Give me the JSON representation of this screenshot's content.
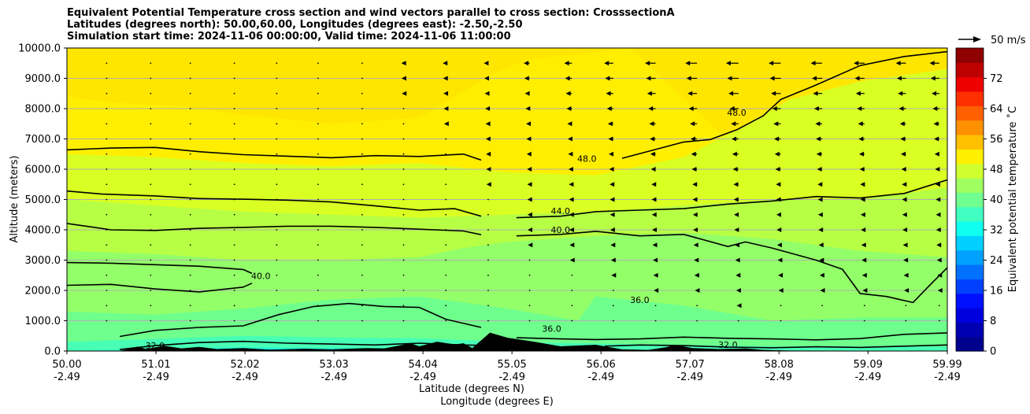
{
  "chart_data": {
    "type": "heatmap",
    "title_lines": [
      "Equivalent Potential Temperature cross section and wind vectors parallel to cross section: CrosssectionA",
      "Latitudes (degrees north): 50.00,60.00, Longitudes (degrees east): -2.50,-2.50",
      "Simulation start time: 2024-11-06 00:00:00, Valid time: 2024-11-06 11:00:00"
    ],
    "xlabel_lines": [
      "Latitude (degrees N)",
      "Longitude (degrees E)"
    ],
    "ylabel": "Altitude (meters)",
    "x_tick_lat": [
      "50.00",
      "51.01",
      "52.02",
      "53.03",
      "54.04",
      "55.05",
      "56.06",
      "57.07",
      "58.08",
      "59.09",
      "59.99"
    ],
    "x_tick_lon": [
      "-2.49",
      "-2.49",
      "-2.49",
      "-2.49",
      "-2.49",
      "-2.49",
      "-2.49",
      "-2.49",
      "-2.49",
      "-2.49",
      "-2.49"
    ],
    "x_tick_values": [
      50.0,
      51.01,
      52.02,
      53.03,
      54.04,
      55.05,
      56.06,
      57.07,
      58.08,
      59.09,
      59.99
    ],
    "xlim": [
      50.0,
      59.99
    ],
    "y_ticks": [
      "0.0",
      "1000.0",
      "2000.0",
      "3000.0",
      "4000.0",
      "5000.0",
      "6000.0",
      "7000.0",
      "8000.0",
      "9000.0",
      "10000.0"
    ],
    "ylim": [
      0,
      10000
    ],
    "grid": "horizontal",
    "colorbar": {
      "label": "Equivalent potential temperature ˚C",
      "ticks": [
        "0",
        "8",
        "16",
        "24",
        "32",
        "40",
        "48",
        "56",
        "64",
        "72"
      ],
      "range": [
        0,
        80
      ],
      "colors": [
        "#00008f",
        "#0000b3",
        "#0000df",
        "#0010ff",
        "#0040ff",
        "#0070ff",
        "#00a0ff",
        "#00d0ff",
        "#10fff0",
        "#40ffc0",
        "#70ff90",
        "#a0ff60",
        "#d0ff30",
        "#fff000",
        "#ffc000",
        "#ff9000",
        "#ff6000",
        "#ff3000",
        "#ef0000",
        "#bf0000",
        "#8f0000"
      ]
    },
    "wind_key_label": "50 m/s",
    "field_layers": [
      {
        "theta": 47,
        "color": "#ffee00",
        "boundary": [
          [
            50.0,
            8400
          ],
          [
            50.5,
            8200
          ],
          [
            51.2,
            8100
          ],
          [
            52.0,
            7800
          ],
          [
            53.0,
            7500
          ],
          [
            54.0,
            7700
          ],
          [
            54.8,
            9100
          ],
          [
            55.2,
            9600
          ],
          [
            56.4,
            10000
          ]
        ]
      },
      {
        "theta": 45,
        "color": "#d9ff23",
        "boundary": [
          [
            50.0,
            6500
          ],
          [
            51.0,
            6400
          ],
          [
            52.0,
            6200
          ],
          [
            53.0,
            6100
          ],
          [
            54.0,
            6200
          ],
          [
            55.0,
            5900
          ],
          [
            56.0,
            5800
          ],
          [
            57.0,
            6400
          ],
          [
            57.6,
            7300
          ],
          [
            58.2,
            8300
          ],
          [
            59.0,
            8900
          ],
          [
            59.99,
            9300
          ]
        ]
      },
      {
        "theta": 42,
        "color": "#b7ff45",
        "boundary": [
          [
            50.0,
            5000
          ],
          [
            51.0,
            4800
          ],
          [
            52.0,
            4600
          ],
          [
            53.0,
            4500
          ],
          [
            54.0,
            4400
          ],
          [
            55.0,
            4500
          ],
          [
            56.0,
            4600
          ],
          [
            57.0,
            4800
          ],
          [
            58.0,
            5000
          ],
          [
            59.0,
            5000
          ],
          [
            59.99,
            5400
          ]
        ]
      },
      {
        "theta": 39,
        "color": "#93ff69",
        "boundary": [
          [
            50.0,
            3300
          ],
          [
            51.0,
            3200
          ],
          [
            52.0,
            3000
          ],
          [
            53.0,
            3000
          ],
          [
            54.0,
            3100
          ],
          [
            54.5,
            3400
          ],
          [
            55.0,
            3600
          ],
          [
            56.0,
            3800
          ],
          [
            57.0,
            3900
          ],
          [
            58.0,
            3700
          ],
          [
            59.0,
            3300
          ],
          [
            59.99,
            3100
          ]
        ]
      },
      {
        "theta": 37,
        "color": "#6fff8d",
        "boundary": [
          [
            50.0,
            1300
          ],
          [
            51.0,
            1200
          ],
          [
            52.0,
            1400
          ],
          [
            53.0,
            1700
          ],
          [
            54.0,
            1800
          ],
          [
            55.0,
            1400
          ],
          [
            55.8,
            1000
          ],
          [
            56.0,
            1800
          ],
          [
            57.0,
            1500
          ],
          [
            58.0,
            1000
          ],
          [
            59.0,
            1100
          ],
          [
            59.99,
            1100
          ]
        ]
      },
      {
        "theta": 34,
        "color": "#47ffb5",
        "boundary": [
          [
            50.0,
            300
          ],
          [
            51.0,
            400
          ],
          [
            52.0,
            500
          ],
          [
            53.0,
            450
          ],
          [
            54.0,
            420
          ],
          [
            55.0,
            300
          ],
          [
            56.0,
            250
          ],
          [
            57.0,
            200
          ],
          [
            58.0,
            150
          ],
          [
            59.99,
            150
          ]
        ]
      },
      {
        "theta": 31,
        "color": "#1ff8dc",
        "boundary": [
          [
            50.0,
            0
          ],
          [
            51.0,
            60
          ],
          [
            52.0,
            120
          ],
          [
            53.0,
            90
          ],
          [
            54.0,
            110
          ],
          [
            55.0,
            70
          ],
          [
            56.0,
            20
          ],
          [
            57.0,
            0
          ],
          [
            59.99,
            0
          ]
        ]
      }
    ],
    "contours": [
      {
        "label": "48.0",
        "label_at": [
          55.9,
          6250
        ],
        "points": [
          [
            50.0,
            6640
          ],
          [
            50.5,
            6700
          ],
          [
            51.0,
            6720
          ],
          [
            51.5,
            6580
          ],
          [
            52.0,
            6480
          ],
          [
            52.5,
            6430
          ],
          [
            53.0,
            6380
          ],
          [
            53.5,
            6450
          ],
          [
            54.0,
            6420
          ],
          [
            54.5,
            6500
          ],
          [
            54.7,
            6300
          ]
        ]
      },
      {
        "label": "48.0",
        "label_at": [
          57.6,
          7770
        ],
        "points": [
          [
            56.3,
            6360
          ],
          [
            57.0,
            6900
          ],
          [
            57.3,
            6980
          ],
          [
            57.6,
            7300
          ],
          [
            57.9,
            7760
          ],
          [
            58.1,
            8300
          ],
          [
            58.5,
            8780
          ],
          [
            59.0,
            9420
          ],
          [
            59.5,
            9720
          ],
          [
            59.99,
            9880
          ]
        ]
      },
      {
        "label": "44.0",
        "label_at": [
          55.6,
          4520
        ],
        "points": [
          [
            50.0,
            5280
          ],
          [
            50.4,
            5180
          ],
          [
            51.0,
            5120
          ],
          [
            51.5,
            5030
          ],
          [
            52.0,
            5010
          ],
          [
            52.5,
            4980
          ],
          [
            53.0,
            4920
          ],
          [
            53.5,
            4790
          ],
          [
            54.0,
            4650
          ],
          [
            54.4,
            4700
          ],
          [
            54.7,
            4450
          ]
        ]
      },
      {
        "label": "",
        "label_at": null,
        "points": [
          [
            55.1,
            4400
          ],
          [
            55.6,
            4450
          ],
          [
            56.0,
            4600
          ],
          [
            56.5,
            4650
          ],
          [
            57.0,
            4700
          ],
          [
            57.5,
            4850
          ],
          [
            58.0,
            4950
          ],
          [
            58.5,
            5100
          ],
          [
            59.0,
            5050
          ],
          [
            59.5,
            5200
          ],
          [
            59.99,
            5650
          ]
        ]
      },
      {
        "label": "40.0",
        "label_at": [
          55.6,
          3900
        ],
        "points": [
          [
            50.0,
            4210
          ],
          [
            50.5,
            4000
          ],
          [
            51.0,
            3980
          ],
          [
            51.5,
            4050
          ],
          [
            52.0,
            4080
          ],
          [
            52.5,
            4120
          ],
          [
            53.0,
            4120
          ],
          [
            53.5,
            4080
          ],
          [
            54.0,
            4020
          ],
          [
            54.5,
            3960
          ],
          [
            54.7,
            3840
          ]
        ]
      },
      {
        "label": "",
        "label_at": null,
        "points": [
          [
            55.1,
            3800
          ],
          [
            55.6,
            3850
          ],
          [
            56.0,
            3950
          ],
          [
            56.5,
            3800
          ],
          [
            57.0,
            3850
          ],
          [
            57.5,
            3450
          ],
          [
            57.7,
            3600
          ],
          [
            58.0,
            3400
          ],
          [
            58.5,
            3000
          ],
          [
            58.8,
            2700
          ],
          [
            59.0,
            1900
          ],
          [
            59.3,
            1800
          ],
          [
            59.6,
            1600
          ],
          [
            59.8,
            2200
          ],
          [
            59.99,
            2750
          ]
        ]
      },
      {
        "label": "",
        "label_at": null,
        "points": [
          [
            50.0,
            2920
          ],
          [
            50.5,
            2900
          ],
          [
            51.0,
            2850
          ],
          [
            51.5,
            2800
          ],
          [
            52.0,
            2690
          ],
          [
            52.1,
            2560
          ]
        ]
      },
      {
        "label": "40.0",
        "label_at": [
          52.2,
          2380
        ],
        "points": [
          [
            50.0,
            2170
          ],
          [
            50.5,
            2200
          ],
          [
            51.0,
            2050
          ],
          [
            51.5,
            1950
          ],
          [
            52.0,
            2110
          ],
          [
            52.1,
            2240
          ]
        ]
      },
      {
        "label": "36.0",
        "label_at": [
          56.5,
          1580
        ],
        "points": [
          [
            50.6,
            480
          ],
          [
            51.0,
            680
          ],
          [
            51.5,
            780
          ],
          [
            52.0,
            830
          ],
          [
            52.4,
            1200
          ],
          [
            52.8,
            1470
          ],
          [
            53.2,
            1570
          ],
          [
            53.6,
            1470
          ],
          [
            54.0,
            1440
          ],
          [
            54.3,
            1050
          ],
          [
            54.7,
            780
          ]
        ]
      },
      {
        "label": "36.0",
        "label_at": [
          55.5,
          640
        ],
        "points": [
          [
            55.1,
            440
          ],
          [
            55.6,
            400
          ],
          [
            56.0,
            380
          ],
          [
            56.5,
            400
          ],
          [
            57.0,
            460
          ],
          [
            57.5,
            420
          ],
          [
            58.0,
            400
          ],
          [
            58.5,
            370
          ],
          [
            59.0,
            410
          ],
          [
            59.5,
            550
          ],
          [
            59.99,
            600
          ]
        ]
      },
      {
        "label": "32.0",
        "label_at": [
          51.0,
          80
        ],
        "points": [
          [
            50.6,
            50
          ],
          [
            51.0,
            180
          ],
          [
            51.5,
            280
          ],
          [
            52.0,
            320
          ],
          [
            52.5,
            260
          ],
          [
            53.0,
            230
          ],
          [
            53.5,
            200
          ],
          [
            54.0,
            260
          ],
          [
            54.5,
            200
          ],
          [
            55.0,
            170
          ]
        ]
      },
      {
        "label": "32.0",
        "label_at": [
          57.5,
          110
        ],
        "points": [
          [
            56.1,
            160
          ],
          [
            56.5,
            200
          ],
          [
            57.0,
            180
          ],
          [
            57.5,
            130
          ],
          [
            58.0,
            110
          ],
          [
            58.5,
            140
          ],
          [
            59.0,
            120
          ],
          [
            59.5,
            160
          ],
          [
            59.99,
            200
          ]
        ]
      }
    ],
    "orography": [
      [
        50.0,
        0
      ],
      [
        50.6,
        0
      ],
      [
        50.7,
        60
      ],
      [
        50.8,
        140
      ],
      [
        50.9,
        60
      ],
      [
        51.1,
        170
      ],
      [
        51.3,
        80
      ],
      [
        51.5,
        130
      ],
      [
        51.7,
        60
      ],
      [
        52.0,
        90
      ],
      [
        52.3,
        40
      ],
      [
        52.7,
        70
      ],
      [
        53.0,
        50
      ],
      [
        53.4,
        90
      ],
      [
        53.6,
        80
      ],
      [
        53.9,
        250
      ],
      [
        54.0,
        150
      ],
      [
        54.2,
        300
      ],
      [
        54.4,
        210
      ],
      [
        54.5,
        250
      ],
      [
        54.6,
        90
      ],
      [
        54.8,
        600
      ],
      [
        55.0,
        430
      ],
      [
        55.3,
        300
      ],
      [
        55.6,
        150
      ],
      [
        56.0,
        200
      ],
      [
        56.3,
        50
      ],
      [
        56.6,
        30
      ],
      [
        56.8,
        120
      ],
      [
        56.9,
        200
      ],
      [
        57.1,
        90
      ],
      [
        57.4,
        60
      ],
      [
        57.7,
        80
      ],
      [
        57.9,
        30
      ],
      [
        58.2,
        10
      ],
      [
        59.99,
        0
      ]
    ],
    "wind_vectors": {
      "levels": [
        9500,
        9000,
        8500,
        8000,
        7500,
        7000,
        6500,
        6000,
        5500,
        5000,
        4500,
        4000,
        3500,
        3000,
        2500,
        2000,
        1500,
        1000
      ],
      "columns": [
        50.45,
        50.95,
        51.4,
        51.9,
        52.38,
        52.85,
        53.35,
        53.82,
        54.3,
        54.78,
        55.25,
        55.73,
        56.2,
        56.68,
        57.15,
        57.62,
        58.1,
        58.57,
        59.05,
        59.52,
        59.9
      ],
      "u_profile_top": [
        -0.1,
        -0.1,
        -0.2,
        -0.2,
        -0.4,
        -0.6,
        -0.9,
        -1.3,
        -1.8,
        -2.5,
        -3.4,
        -4.4,
        -5.3,
        -6.1,
        -6.8,
        -7.2,
        -7.0,
        -6.6,
        -6.2,
        -5.8,
        -5.6
      ],
      "level_scale": [
        1.0,
        0.9,
        0.8,
        0.7,
        0.6,
        0.55,
        0.5,
        0.45,
        0.4,
        0.38,
        0.36,
        0.34,
        0.3,
        0.26,
        0.22,
        0.18,
        0.14,
        0.1
      ]
    }
  }
}
